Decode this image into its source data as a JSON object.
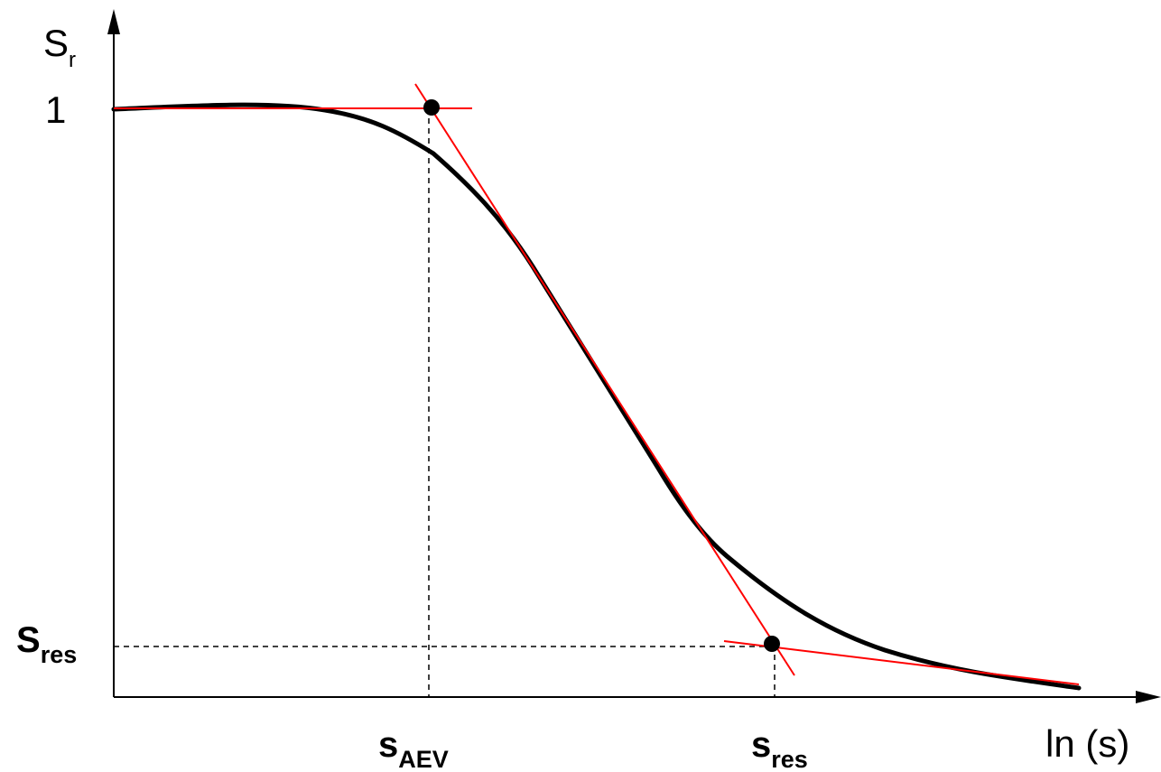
{
  "y_axis_label": {
    "main": "S",
    "subscript": "r"
  },
  "x_axis_label": "ln (s)",
  "y_tick_one": "1",
  "y_tick_residual": {
    "main": "S",
    "subscript": "res"
  },
  "x_tick_aev": {
    "main": "s",
    "subscript": "AEV"
  },
  "x_tick_residual": {
    "main": "s",
    "subscript": "res"
  },
  "colors": {
    "curve": "#000000",
    "tangent_lines": "#ff0000",
    "axes": "#000000",
    "guides": "#000000"
  }
}
